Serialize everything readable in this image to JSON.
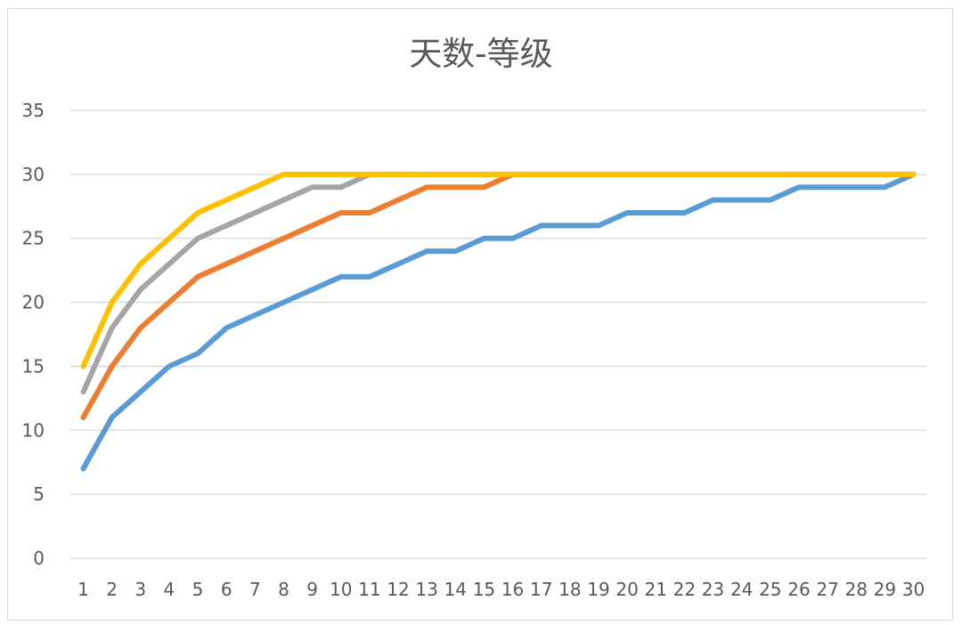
{
  "chart_data": {
    "type": "line",
    "title": "天数-等级",
    "xlabel": "",
    "ylabel": "",
    "ylim": [
      0,
      35
    ],
    "yticks": [
      0,
      5,
      10,
      15,
      20,
      25,
      30,
      35
    ],
    "grid": true,
    "legend": "none",
    "x": [
      1,
      2,
      3,
      4,
      5,
      6,
      7,
      8,
      9,
      10,
      11,
      12,
      13,
      14,
      15,
      16,
      17,
      18,
      19,
      20,
      21,
      22,
      23,
      24,
      25,
      26,
      27,
      28,
      29,
      30
    ],
    "series": [
      {
        "color": "#5b9bd5",
        "values": [
          7,
          11,
          13,
          15,
          16,
          18,
          19,
          20,
          21,
          22,
          22,
          23,
          24,
          24,
          25,
          25,
          26,
          26,
          26,
          27,
          27,
          27,
          28,
          28,
          28,
          29,
          29,
          29,
          29,
          30
        ]
      },
      {
        "color": "#ed7d31",
        "values": [
          11,
          15,
          18,
          20,
          22,
          23,
          24,
          25,
          26,
          27,
          27,
          28,
          29,
          29,
          29,
          30,
          30,
          30,
          30,
          30,
          30,
          30,
          30,
          30,
          30,
          30,
          30,
          30,
          30,
          30
        ]
      },
      {
        "color": "#a5a5a5",
        "values": [
          13,
          18,
          21,
          23,
          25,
          26,
          27,
          28,
          29,
          29,
          30,
          30,
          30,
          30,
          30,
          30,
          30,
          30,
          30,
          30,
          30,
          30,
          30,
          30,
          30,
          30,
          30,
          30,
          30,
          30
        ]
      },
      {
        "color": "#ffc000",
        "values": [
          15,
          20,
          23,
          25,
          27,
          28,
          29,
          30,
          30,
          30,
          30,
          30,
          30,
          30,
          30,
          30,
          30,
          30,
          30,
          30,
          30,
          30,
          30,
          30,
          30,
          30,
          30,
          30,
          30,
          30
        ]
      }
    ]
  }
}
